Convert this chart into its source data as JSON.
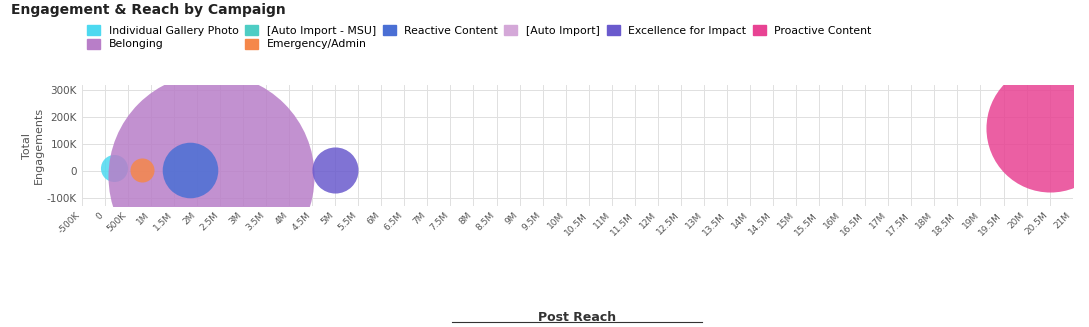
{
  "title": "Engagement & Reach by Campaign",
  "xlabel": "Post Reach",
  "ylabel": "Total\nEngagements",
  "background_color": "#ffffff",
  "grid_color": "#e0e0e0",
  "campaigns": [
    {
      "name": "Individual Gallery Photo",
      "color": "#4dd9f0",
      "reach": 200000,
      "engagements": 10000,
      "size": 380
    },
    {
      "name": "Belonging",
      "color": "#b87ec8",
      "reach": 2300000,
      "engagements": -20000,
      "size": 22000
    },
    {
      "name": "[Auto Import - MSU]",
      "color": "#4ecdc4",
      "reach": null,
      "engagements": null,
      "size": 1
    },
    {
      "name": "Emergency/Admin",
      "color": "#f5874a",
      "reach": 800000,
      "engagements": 5000,
      "size": 300
    },
    {
      "name": "Reactive Content",
      "color": "#4a6fd4",
      "reach": 1850000,
      "engagements": 5000,
      "size": 1600
    },
    {
      "name": "[Auto Import]",
      "color": "#d4a8d8",
      "reach": null,
      "engagements": null,
      "size": 1
    },
    {
      "name": "Excellence for Impact",
      "color": "#6a5acd",
      "reach": 5000000,
      "engagements": 5000,
      "size": 1100
    },
    {
      "name": "Proactive Content",
      "color": "#e84393",
      "reach": 20500000,
      "engagements": 160000,
      "size": 8500
    }
  ],
  "xlim": [
    -500000,
    21000000
  ],
  "ylim": [
    -130000,
    320000
  ],
  "yticks": [
    -100000,
    0,
    100000,
    200000,
    300000
  ],
  "ytick_labels": [
    "-100K",
    "0",
    "100K",
    "200K",
    "300K"
  ]
}
